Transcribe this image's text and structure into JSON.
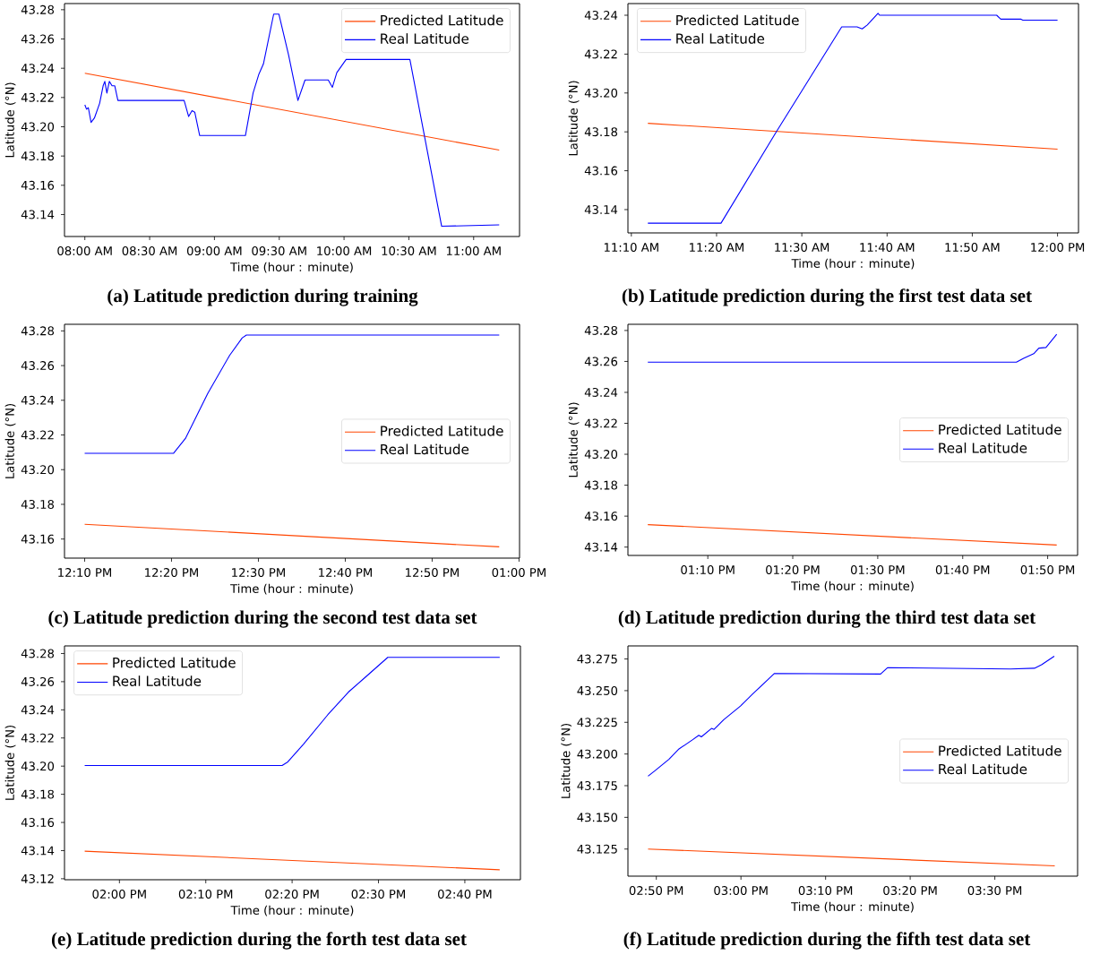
{
  "chart_data": [
    {
      "type": "line",
      "title": "(a) Latitude prediction during training",
      "xlabel": "Time (hour : minute)",
      "ylabel": "Latitude (°N)",
      "xlim": [
        7.843,
        11.354
      ],
      "ylim": [
        43.125,
        43.2842
      ],
      "legend": "top right",
      "xticks": [
        {
          "value": 8.0,
          "label": "08:00 AM"
        },
        {
          "value": 8.5,
          "label": "08:30 AM"
        },
        {
          "value": 9.0,
          "label": "09:00 AM"
        },
        {
          "value": 9.5,
          "label": "09:30 AM"
        },
        {
          "value": 10.0,
          "label": "10:00 AM"
        },
        {
          "value": 10.5,
          "label": "10:30 AM"
        },
        {
          "value": 11.0,
          "label": "11:00 AM"
        }
      ],
      "yticks": [
        43.14,
        43.16,
        43.18,
        {
          "value": 43.2,
          "label": "43.20"
        },
        43.22,
        43.24,
        43.26,
        43.28
      ],
      "series": [
        {
          "name": "Predicted Latitude",
          "color": "#ff4500",
          "x": [
            8.0,
            11.197
          ],
          "values": [
            43.2366,
            43.1841
          ]
        },
        {
          "name": "Real Latitude",
          "color": "#0000ff",
          "x": [
            8.0,
            8.013,
            8.027,
            8.048,
            8.074,
            8.114,
            8.141,
            8.154,
            8.17,
            8.189,
            8.21,
            8.231,
            8.255,
            8.766,
            8.801,
            8.827,
            8.848,
            8.886,
            9.239,
            9.298,
            9.343,
            9.378,
            9.457,
            9.497,
            9.572,
            9.644,
            9.699,
            9.878,
            9.91,
            9.944,
            10.016,
            10.508,
            10.753,
            11.197
          ],
          "values": [
            43.215,
            43.212,
            43.213,
            43.203,
            43.206,
            43.216,
            43.228,
            43.231,
            43.223,
            43.231,
            43.228,
            43.228,
            43.218,
            43.218,
            43.207,
            43.211,
            43.21,
            43.194,
            43.194,
            43.223,
            43.236,
            43.243,
            43.277,
            43.277,
            43.249,
            43.218,
            43.232,
            43.232,
            43.227,
            43.237,
            43.246,
            43.246,
            43.132,
            43.133
          ]
        }
      ]
    },
    {
      "type": "line",
      "title": "(b) Latitude prediction during the first test data set",
      "xlabel": "Time (hour : minute)",
      "ylabel": "Latitude (°N)",
      "xlim": [
        11.16,
        12.041
      ],
      "ylim": [
        43.128,
        43.246
      ],
      "legend": "top left",
      "xticks": [
        {
          "value": 11.1667,
          "label": "11:10 AM"
        },
        {
          "value": 11.3333,
          "label": "11:20 AM"
        },
        {
          "value": 11.5,
          "label": "11:30 AM"
        },
        {
          "value": 11.6667,
          "label": "11:40 AM"
        },
        {
          "value": 11.8333,
          "label": "11:50 AM"
        },
        {
          "value": 12.0,
          "label": "12:00 PM"
        }
      ],
      "yticks": [
        43.14,
        43.16,
        43.18,
        {
          "value": 43.2,
          "label": "43.20"
        },
        43.22,
        43.24
      ],
      "series": [
        {
          "name": "Predicted Latitude",
          "color": "#ff4500",
          "x": [
            11.199,
            12.0
          ],
          "values": [
            43.1844,
            43.1711
          ]
        },
        {
          "name": "Real Latitude",
          "color": "#0000ff",
          "x": [
            11.199,
            11.342,
            11.45,
            11.578,
            11.608,
            11.618,
            11.628,
            11.649,
            11.652,
            11.881,
            11.889,
            11.928,
            11.932,
            12.0
          ],
          "values": [
            43.133,
            43.133,
            43.18,
            43.234,
            43.234,
            43.233,
            43.235,
            43.241,
            43.24,
            43.24,
            43.238,
            43.238,
            43.2375,
            43.2375
          ]
        }
      ]
    },
    {
      "type": "line",
      "title": "(c) Latitude prediction during the second test data set",
      "xlabel": "Time (hour : minute)",
      "ylabel": "Latitude (°N)",
      "xlim": [
        12.128,
        13.001
      ],
      "ylim": [
        43.149,
        43.2838
      ],
      "legend": "right",
      "xticks": [
        {
          "value": 12.1667,
          "label": "12:10 PM"
        },
        {
          "value": 12.3333,
          "label": "12:20 PM"
        },
        {
          "value": 12.5,
          "label": "12:30 PM"
        },
        {
          "value": 12.6667,
          "label": "12:40 PM"
        },
        {
          "value": 12.8333,
          "label": "12:50 PM"
        },
        {
          "value": 13.0,
          "label": "01:00 PM"
        }
      ],
      "yticks": [
        43.16,
        43.18,
        {
          "value": 43.2,
          "label": "43.20"
        },
        43.22,
        43.24,
        43.26,
        43.28
      ],
      "series": [
        {
          "name": "Predicted Latitude",
          "color": "#ff4500",
          "x": [
            12.1667,
            12.962
          ],
          "values": [
            43.1685,
            43.1555
          ]
        },
        {
          "name": "Real Latitude",
          "color": "#0000ff",
          "x": [
            12.1667,
            12.337,
            12.36,
            12.403,
            12.445,
            12.469,
            12.477,
            12.962
          ],
          "values": [
            43.2094,
            43.2094,
            43.218,
            43.244,
            43.266,
            43.276,
            43.2776,
            43.2776
          ]
        }
      ]
    },
    {
      "type": "line",
      "title": "(d) Latitude prediction during the third test data set",
      "xlabel": "Time (hour : minute)",
      "ylabel": "Latitude (°N)",
      "xlim": [
        13.01,
        13.892
      ],
      "ylim": [
        43.1346,
        43.284
      ],
      "legend": "right",
      "xticks": [
        {
          "value": 13.1667,
          "label": "01:10 PM"
        },
        {
          "value": 13.3333,
          "label": "01:20 PM"
        },
        {
          "value": 13.5,
          "label": "01:30 PM"
        },
        {
          "value": 13.6667,
          "label": "01:40 PM"
        },
        {
          "value": 13.8333,
          "label": "01:50 PM"
        }
      ],
      "yticks": [
        43.14,
        43.16,
        43.18,
        {
          "value": 43.2,
          "label": "43.20"
        },
        43.22,
        43.24,
        43.26,
        43.28
      ],
      "series": [
        {
          "name": "Predicted Latitude",
          "color": "#ff4500",
          "x": [
            13.049,
            13.851
          ],
          "values": [
            43.1545,
            43.1413
          ]
        },
        {
          "name": "Real Latitude",
          "color": "#0000ff",
          "x": [
            13.049,
            13.772,
            13.786,
            13.806,
            13.816,
            13.83,
            13.851
          ],
          "values": [
            43.2595,
            43.2595,
            43.262,
            43.265,
            43.2686,
            43.269,
            43.2775
          ]
        }
      ]
    },
    {
      "type": "line",
      "title": "(e) Latitude prediction during the forth test data set",
      "xlabel": "Time (hour : minute)",
      "ylabel": "Latitude (°N)",
      "xlim": [
        13.894,
        14.774
      ],
      "ylim": [
        43.1193,
        43.2854
      ],
      "legend": "top left",
      "xticks": [
        {
          "value": 14.0,
          "label": "02:00 PM"
        },
        {
          "value": 14.1667,
          "label": "02:10 PM"
        },
        {
          "value": 14.3333,
          "label": "02:20 PM"
        },
        {
          "value": 14.5,
          "label": "02:30 PM"
        },
        {
          "value": 14.6667,
          "label": "02:40 PM"
        }
      ],
      "yticks": [
        43.12,
        43.14,
        43.16,
        43.18,
        {
          "value": 43.2,
          "label": "43.20"
        },
        43.22,
        43.24,
        43.26,
        43.28
      ],
      "series": [
        {
          "name": "Predicted Latitude",
          "color": "#ff4500",
          "x": [
            13.933,
            14.734
          ],
          "values": [
            43.1396,
            43.1264
          ]
        },
        {
          "name": "Real Latitude",
          "color": "#0000ff",
          "x": [
            13.933,
            14.314,
            14.325,
            14.355,
            14.402,
            14.442,
            14.475,
            14.518,
            14.734
          ],
          "values": [
            43.2004,
            43.2004,
            43.203,
            43.2155,
            43.2364,
            43.2526,
            43.2633,
            43.2773,
            43.2773
          ]
        }
      ]
    },
    {
      "type": "line",
      "title": "(f) Latitude prediction during the fifth test data set",
      "xlabel": "Time (hour : minute)",
      "ylabel": "Latitude (°N)",
      "xlim": [
        14.7774,
        15.663
      ],
      "ylim": [
        43.1036,
        43.2853
      ],
      "legend": "right",
      "xticks": [
        {
          "value": 14.8333,
          "label": "02:50 PM"
        },
        {
          "value": 15.0,
          "label": "03:00 PM"
        },
        {
          "value": 15.1667,
          "label": "03:10 PM"
        },
        {
          "value": 15.3333,
          "label": "03:20 PM"
        },
        {
          "value": 15.5,
          "label": "03:30 PM"
        }
      ],
      "yticks": [
        43.125,
        {
          "value": 43.15,
          "label": "43.150"
        },
        43.175,
        {
          "value": 43.2,
          "label": "43.200"
        },
        43.225,
        {
          "value": 43.25,
          "label": "43.250"
        },
        43.275
      ],
      "series": [
        {
          "name": "Predicted Latitude",
          "color": "#ff4500",
          "x": [
            14.817,
            15.618
          ],
          "values": [
            43.125,
            43.1117
          ]
        },
        {
          "name": "Real Latitude",
          "color": "#0000ff",
          "x": [
            14.817,
            14.831,
            14.858,
            14.878,
            14.905,
            14.917,
            14.922,
            14.942,
            14.947,
            14.966,
            14.999,
            15.023,
            15.066,
            15.275,
            15.289,
            15.531,
            15.578,
            15.592,
            15.617
          ],
          "values": [
            43.1825,
            43.1869,
            43.1958,
            43.204,
            43.2113,
            43.2148,
            43.2135,
            43.2202,
            43.2194,
            43.227,
            43.2378,
            43.2473,
            43.2636,
            43.2631,
            43.2682,
            43.2671,
            43.2677,
            43.2704,
            43.2772
          ]
        }
      ]
    }
  ]
}
